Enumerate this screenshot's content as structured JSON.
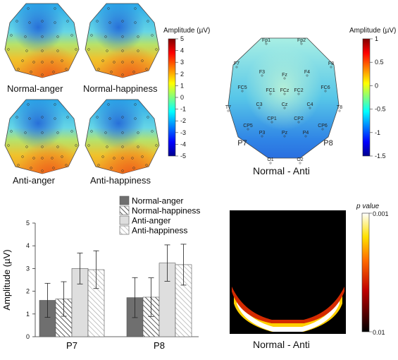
{
  "topomaps_small": {
    "labels": [
      "Normal-anger",
      "Normal-happiness",
      "Anti-anger",
      "Anti-happiness"
    ],
    "colorbar": {
      "title": "Amplitude (µV)",
      "ticks": [
        "5",
        "4",
        "3",
        "2",
        "1",
        "0",
        "-1",
        "-2",
        "-3",
        "-4",
        "-5"
      ]
    }
  },
  "topomap_diff": {
    "label": "Normal - Anti",
    "electrodes": [
      "Fp1",
      "Fp2",
      "F7",
      "F8",
      "F3",
      "Fz",
      "F4",
      "FC5",
      "FC1",
      "FCz",
      "FC2",
      "FC6",
      "T7",
      "C3",
      "Cz",
      "C4",
      "T8",
      "CP1",
      "CP2",
      "CP5",
      "CP6",
      "P3",
      "Pz",
      "P4",
      "P7",
      "P8",
      "O1",
      "O2"
    ],
    "colorbar": {
      "title": "Amplitude (µV)",
      "ticks": [
        "1",
        "0.5",
        "0",
        "-0.5",
        "-1",
        "-1.5"
      ]
    }
  },
  "chart_data": {
    "type": "bar",
    "categories": [
      "P7",
      "P8"
    ],
    "ylabel": "Amplitude (µV)",
    "ylim": [
      0,
      5
    ],
    "yticks": [
      "0",
      "1",
      "2",
      "3",
      "4",
      "5"
    ],
    "legend_position": "top",
    "series": [
      {
        "name": "Normal-anger",
        "values": [
          1.6,
          1.72
        ],
        "errors": [
          0.75,
          0.88
        ],
        "color": "#6f6f6f",
        "pattern": "solid"
      },
      {
        "name": "Normal-happiness",
        "values": [
          1.66,
          1.74
        ],
        "errors": [
          0.76,
          0.85
        ],
        "color": "#ffffff",
        "pattern": "hatch"
      },
      {
        "name": "Anti-anger",
        "values": [
          3.0,
          3.24
        ],
        "errors": [
          0.68,
          0.8
        ],
        "color": "#dedede",
        "pattern": "solid"
      },
      {
        "name": "Anti-happiness",
        "values": [
          2.95,
          3.17
        ],
        "errors": [
          0.83,
          0.9
        ],
        "color": "#ffffff",
        "pattern": "hatch-light"
      }
    ]
  },
  "pvalue_map": {
    "label": "Normal - Anti",
    "colorbar": {
      "title": "p value",
      "top": "0.001",
      "bottom": "0.01"
    }
  }
}
